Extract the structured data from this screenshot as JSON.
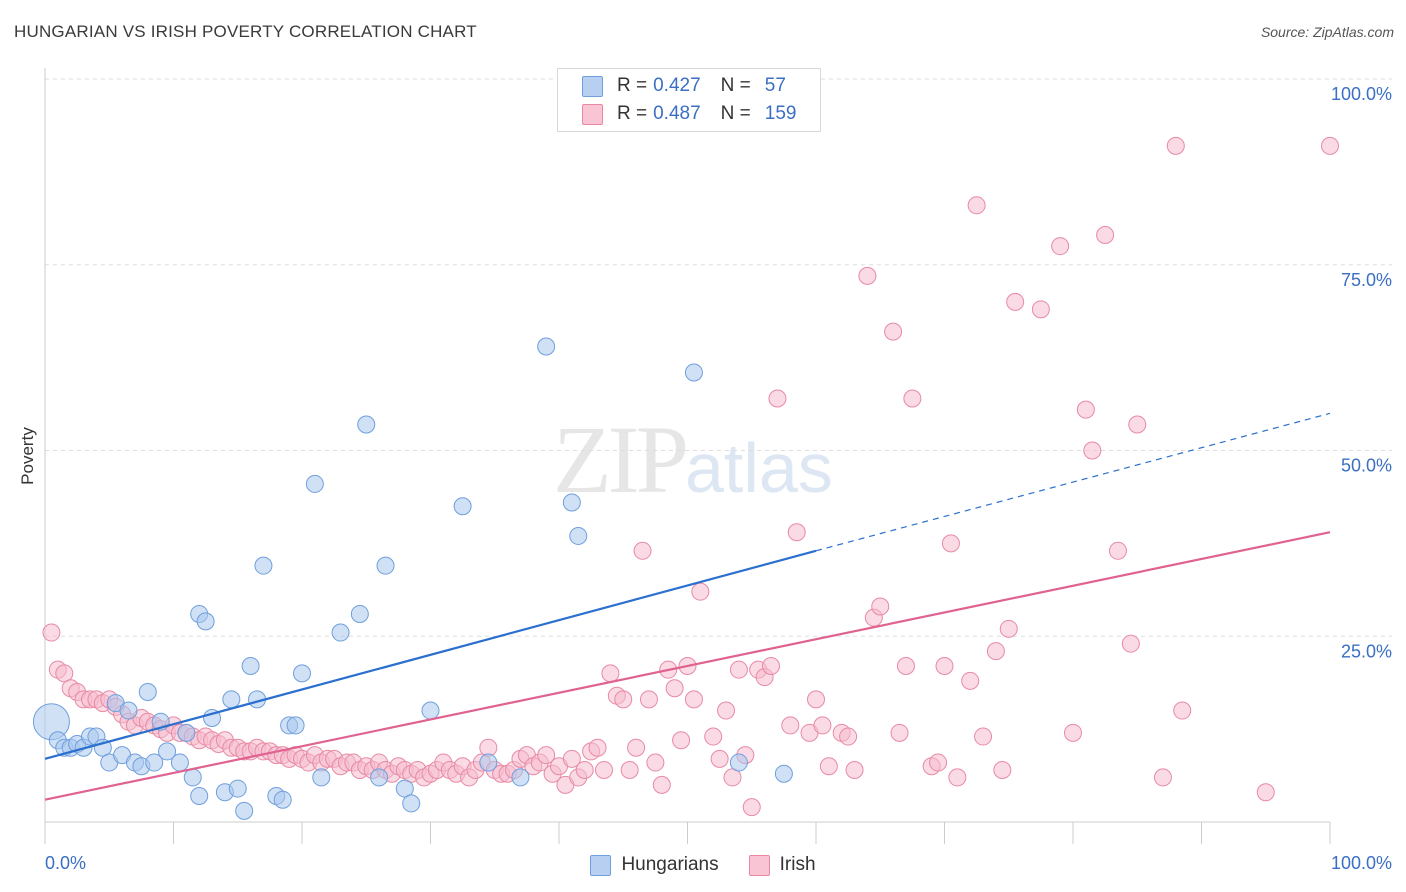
{
  "title": "HUNGARIAN VS IRISH POVERTY CORRELATION CHART",
  "source": "Source: ZipAtlas.com",
  "watermark": {
    "zip": "ZIP",
    "atlas": "atlas"
  },
  "legend_top": [
    {
      "r_label": "R =",
      "r_value": "0.427",
      "n_label": "N =",
      "n_value": "57",
      "fill": "#b7d0f2",
      "stroke": "#6f9fdc"
    },
    {
      "r_label": "R =",
      "r_value": "0.487",
      "n_label": "N =",
      "n_value": "159",
      "fill": "#f9c4d3",
      "stroke": "#e8879f"
    }
  ],
  "colors": {
    "hungarians_fill": "#aac8ee",
    "hungarians_stroke": "#6f9fdc",
    "hungarians_line": "#2b6fcf",
    "irish_fill": "#f6bccd",
    "irish_stroke": "#e88aa4",
    "irish_line": "#e06291",
    "tick_label": "#3a6fc4",
    "grid": "#dddddd"
  },
  "chart_data": {
    "type": "scatter",
    "title": "HUNGARIAN VS IRISH POVERTY CORRELATION CHART",
    "xlabel": "",
    "ylabel": "Poverty",
    "xlim": [
      0,
      100
    ],
    "ylim": [
      0,
      100
    ],
    "x_tick_labels": [
      "0.0%",
      "100.0%"
    ],
    "y_tick_labels": [
      "25.0%",
      "50.0%",
      "75.0%",
      "100.0%"
    ],
    "y_ticks": [
      25,
      50,
      75,
      100
    ],
    "grid": true,
    "legend": "bottom-center",
    "series": [
      {
        "name": "Hungarians",
        "points": [
          [
            0.5,
            13.5
          ],
          [
            1,
            11
          ],
          [
            1.5,
            10
          ],
          [
            2,
            10
          ],
          [
            2.5,
            10.5
          ],
          [
            3,
            10
          ],
          [
            3.5,
            11.5
          ],
          [
            4,
            11.5
          ],
          [
            4.5,
            10
          ],
          [
            5,
            8
          ],
          [
            5.5,
            16
          ],
          [
            6,
            9
          ],
          [
            6.5,
            15
          ],
          [
            7,
            8
          ],
          [
            7.5,
            7.5
          ],
          [
            8,
            17.5
          ],
          [
            8.5,
            8
          ],
          [
            9,
            13.5
          ],
          [
            9.5,
            9.5
          ],
          [
            10.5,
            8
          ],
          [
            11,
            12
          ],
          [
            11.5,
            6
          ],
          [
            12,
            3.5
          ],
          [
            12,
            28
          ],
          [
            12.5,
            27
          ],
          [
            13,
            14
          ],
          [
            14,
            4
          ],
          [
            14.5,
            16.5
          ],
          [
            15,
            4.5
          ],
          [
            15.5,
            1.5
          ],
          [
            16,
            21
          ],
          [
            16.5,
            16.5
          ],
          [
            17,
            34.5
          ],
          [
            18,
            3.5
          ],
          [
            18.5,
            3
          ],
          [
            19,
            13
          ],
          [
            19.5,
            13
          ],
          [
            20,
            20
          ],
          [
            21,
            45.5
          ],
          [
            21.5,
            6
          ],
          [
            23,
            25.5
          ],
          [
            24.5,
            28
          ],
          [
            25,
            53.5
          ],
          [
            26,
            6
          ],
          [
            26.5,
            34.5
          ],
          [
            28,
            4.5
          ],
          [
            28.5,
            2.5
          ],
          [
            30,
            15
          ],
          [
            32.5,
            42.5
          ],
          [
            34.5,
            8
          ],
          [
            37,
            6
          ],
          [
            39,
            64
          ],
          [
            41,
            43
          ],
          [
            41.5,
            38.5
          ],
          [
            50.5,
            60.5
          ],
          [
            54,
            8
          ],
          [
            57.5,
            6.5
          ]
        ],
        "trend": {
          "x": [
            0,
            60,
            100
          ],
          "y": [
            8.5,
            36.5,
            55
          ],
          "solid_until_x": 60
        }
      },
      {
        "name": "Irish",
        "points": [
          [
            0.5,
            25.5
          ],
          [
            1,
            20.5
          ],
          [
            1.5,
            20
          ],
          [
            2,
            18
          ],
          [
            2.5,
            17.5
          ],
          [
            3,
            16.5
          ],
          [
            3.5,
            16.5
          ],
          [
            4,
            16.5
          ],
          [
            4.5,
            16
          ],
          [
            5,
            16.5
          ],
          [
            5.5,
            15.5
          ],
          [
            6,
            14.5
          ],
          [
            6.5,
            13.5
          ],
          [
            7,
            13
          ],
          [
            7.5,
            14
          ],
          [
            8,
            13.5
          ],
          [
            8.5,
            13
          ],
          [
            9,
            12.5
          ],
          [
            9.5,
            12
          ],
          [
            10,
            13
          ],
          [
            10.5,
            12
          ],
          [
            11,
            12
          ],
          [
            11.5,
            11.5
          ],
          [
            12,
            11
          ],
          [
            12.5,
            11.5
          ],
          [
            13,
            11
          ],
          [
            13.5,
            10.5
          ],
          [
            14,
            11
          ],
          [
            14.5,
            10
          ],
          [
            15,
            10
          ],
          [
            15.5,
            9.5
          ],
          [
            16,
            9.5
          ],
          [
            16.5,
            10
          ],
          [
            17,
            9.5
          ],
          [
            17.5,
            9.5
          ],
          [
            18,
            9
          ],
          [
            18.5,
            9
          ],
          [
            19,
            8.5
          ],
          [
            19.5,
            9
          ],
          [
            20,
            8.5
          ],
          [
            20.5,
            8
          ],
          [
            21,
            9
          ],
          [
            21.5,
            8
          ],
          [
            22,
            8.5
          ],
          [
            22.5,
            8.5
          ],
          [
            23,
            7.5
          ],
          [
            23.5,
            8
          ],
          [
            24,
            8
          ],
          [
            24.5,
            7
          ],
          [
            25,
            7.5
          ],
          [
            25.5,
            7
          ],
          [
            26,
            8
          ],
          [
            26.5,
            7
          ],
          [
            27,
            6.5
          ],
          [
            27.5,
            7.5
          ],
          [
            28,
            7
          ],
          [
            28.5,
            6.5
          ],
          [
            29,
            7
          ],
          [
            29.5,
            6
          ],
          [
            30,
            6.5
          ],
          [
            30.5,
            7
          ],
          [
            31,
            8
          ],
          [
            31.5,
            7
          ],
          [
            32,
            6.5
          ],
          [
            32.5,
            7.5
          ],
          [
            33,
            6
          ],
          [
            33.5,
            7
          ],
          [
            34,
            8
          ],
          [
            34.5,
            10
          ],
          [
            35,
            7
          ],
          [
            35.5,
            6.5
          ],
          [
            36,
            6.5
          ],
          [
            36.5,
            7
          ],
          [
            37,
            8.5
          ],
          [
            37.5,
            9
          ],
          [
            38,
            7.5
          ],
          [
            38.5,
            8
          ],
          [
            39,
            9
          ],
          [
            39.5,
            6.5
          ],
          [
            40,
            7.5
          ],
          [
            40.5,
            5
          ],
          [
            41,
            8.5
          ],
          [
            41.5,
            6
          ],
          [
            42,
            7
          ],
          [
            42.5,
            9.5
          ],
          [
            43,
            10
          ],
          [
            43.5,
            7
          ],
          [
            44,
            20
          ],
          [
            44.5,
            17
          ],
          [
            45,
            16.5
          ],
          [
            45.5,
            7
          ],
          [
            46,
            10
          ],
          [
            46.5,
            36.5
          ],
          [
            47,
            16.5
          ],
          [
            47.5,
            8
          ],
          [
            48,
            5
          ],
          [
            48.5,
            20.5
          ],
          [
            49,
            18
          ],
          [
            49.5,
            11
          ],
          [
            50,
            21
          ],
          [
            50.5,
            16.5
          ],
          [
            51,
            31
          ],
          [
            52,
            11.5
          ],
          [
            52.5,
            8.5
          ],
          [
            53,
            15
          ],
          [
            53.5,
            6
          ],
          [
            54,
            20.5
          ],
          [
            54.5,
            9
          ],
          [
            55,
            2
          ],
          [
            55.5,
            20.5
          ],
          [
            56,
            19.5
          ],
          [
            56.5,
            21
          ],
          [
            57,
            57
          ],
          [
            58,
            13
          ],
          [
            58.5,
            39
          ],
          [
            59.5,
            12
          ],
          [
            60,
            16.5
          ],
          [
            60.5,
            13
          ],
          [
            61,
            7.5
          ],
          [
            62,
            12
          ],
          [
            62.5,
            11.5
          ],
          [
            63,
            7
          ],
          [
            64,
            73.5
          ],
          [
            64.5,
            27.5
          ],
          [
            65,
            29
          ],
          [
            66,
            66
          ],
          [
            66.5,
            12
          ],
          [
            67,
            21
          ],
          [
            67.5,
            57
          ],
          [
            69,
            7.5
          ],
          [
            69.5,
            8
          ],
          [
            70,
            21
          ],
          [
            70.5,
            37.5
          ],
          [
            71,
            6
          ],
          [
            72,
            19
          ],
          [
            72.5,
            83
          ],
          [
            73,
            11.5
          ],
          [
            74,
            23
          ],
          [
            74.5,
            7
          ],
          [
            75,
            26
          ],
          [
            75.5,
            70
          ],
          [
            77.5,
            69
          ],
          [
            79,
            77.5
          ],
          [
            80,
            12
          ],
          [
            81,
            55.5
          ],
          [
            81.5,
            50
          ],
          [
            82.5,
            79
          ],
          [
            83.5,
            36.5
          ],
          [
            84.5,
            24
          ],
          [
            85,
            53.5
          ],
          [
            87,
            6
          ],
          [
            88,
            91
          ],
          [
            88.5,
            15
          ],
          [
            95,
            4
          ],
          [
            100,
            91
          ]
        ],
        "trend": {
          "x": [
            0,
            100
          ],
          "y": [
            3,
            39
          ]
        }
      }
    ]
  },
  "legend_bottom": [
    "Hungarians",
    "Irish"
  ]
}
